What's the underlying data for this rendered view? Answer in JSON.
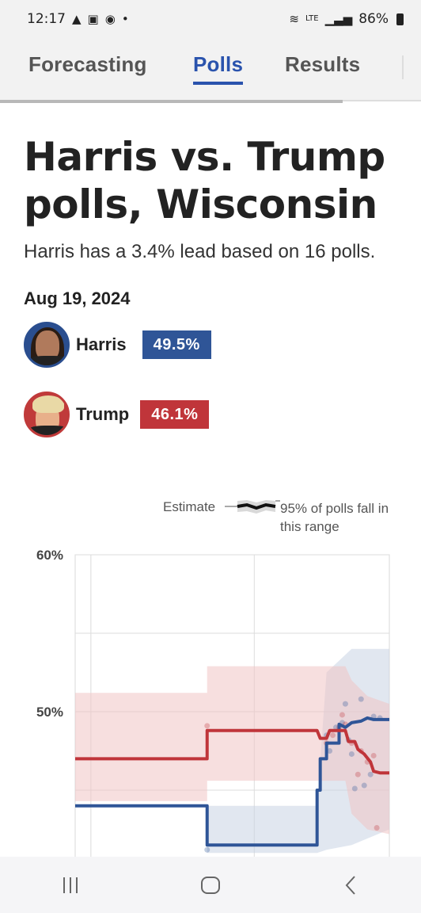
{
  "status_bar": {
    "time": "12:17",
    "battery": "86%",
    "network": "LTE"
  },
  "tabs": [
    {
      "label": "Forecasting",
      "active": false
    },
    {
      "label": "Polls",
      "active": true
    },
    {
      "label": "Results",
      "active": false
    }
  ],
  "page": {
    "title": "Harris vs. Trump polls, Wisconsin",
    "subtitle": "Harris has a 3.4% lead based on 16 polls.",
    "date": "Aug 19, 2024"
  },
  "candidates": [
    {
      "name": "Harris",
      "value": "49.5%",
      "color": "#2f5597"
    },
    {
      "name": "Trump",
      "value": "46.1%",
      "color": "#c0353a"
    }
  ],
  "legend": {
    "estimate": "Estimate",
    "range": "95% of polls fall in this range"
  },
  "chart_data": {
    "type": "line",
    "y_tick_labels": [
      "60%",
      "50%"
    ],
    "ylim": [
      41,
      60
    ],
    "x_range": [
      0,
      100
    ],
    "grid": true,
    "series": [
      {
        "name": "Harris",
        "color": "#2f5597",
        "band_color": "#c9d3e3",
        "points": [
          [
            0,
            44.0
          ],
          [
            42,
            44.0
          ],
          [
            42,
            41.5
          ],
          [
            77,
            41.5
          ],
          [
            77,
            45.0
          ],
          [
            78,
            45.0
          ],
          [
            78,
            47.0
          ],
          [
            80,
            47.0
          ],
          [
            80,
            48.0
          ],
          [
            84,
            48.0
          ],
          [
            84,
            49.2
          ],
          [
            86,
            49.0
          ],
          [
            88,
            49.3
          ],
          [
            91,
            49.4
          ],
          [
            93,
            49.6
          ],
          [
            95,
            49.5
          ],
          [
            100,
            49.5
          ]
        ],
        "band": [
          [
            0,
            41.0,
            41.0
          ],
          [
            42,
            41.0,
            41.0
          ],
          [
            42,
            41.0,
            44.0
          ],
          [
            77,
            41.0,
            44.0
          ],
          [
            80,
            41.2,
            52.5
          ],
          [
            88,
            41.5,
            54.0
          ],
          [
            100,
            42.5,
            54.0
          ]
        ],
        "polls": [
          [
            42,
            41.2
          ],
          [
            80,
            48.5
          ],
          [
            81,
            47.5
          ],
          [
            83,
            49.0
          ],
          [
            85,
            49.3
          ],
          [
            86,
            50.5
          ],
          [
            87,
            48.2
          ],
          [
            88,
            47.3
          ],
          [
            89,
            45.1
          ],
          [
            91,
            50.8
          ],
          [
            92,
            45.3
          ],
          [
            94,
            46.0
          ],
          [
            95,
            49.7
          ],
          [
            97,
            49.6
          ]
        ]
      },
      {
        "name": "Trump",
        "color": "#c0353a",
        "band_color": "#f0c5c5",
        "points": [
          [
            0,
            47.0
          ],
          [
            42,
            47.0
          ],
          [
            42,
            48.8
          ],
          [
            77,
            48.8
          ],
          [
            78,
            48.3
          ],
          [
            80,
            48.3
          ],
          [
            81,
            48.8
          ],
          [
            86,
            48.8
          ],
          [
            87,
            48.1
          ],
          [
            89,
            48.1
          ],
          [
            90,
            47.6
          ],
          [
            92,
            47.3
          ],
          [
            94,
            46.8
          ],
          [
            95,
            46.2
          ],
          [
            97,
            46.1
          ],
          [
            100,
            46.1
          ]
        ],
        "band": [
          [
            0,
            44.3,
            51.2
          ],
          [
            42,
            44.3,
            51.2
          ],
          [
            42,
            45.6,
            52.9
          ],
          [
            86,
            45.6,
            52.9
          ],
          [
            88,
            43.5,
            52.0
          ],
          [
            93,
            42.5,
            51.0
          ],
          [
            100,
            42.2,
            50.5
          ]
        ],
        "polls": [
          [
            42,
            49.1
          ],
          [
            80,
            48.0
          ],
          [
            82,
            48.5
          ],
          [
            84,
            49.0
          ],
          [
            85,
            49.8
          ],
          [
            86,
            49.2
          ],
          [
            88,
            48.0
          ],
          [
            90,
            46.0
          ],
          [
            91,
            47.5
          ],
          [
            93,
            46.8
          ],
          [
            95,
            47.2
          ],
          [
            96,
            42.6
          ]
        ]
      }
    ]
  },
  "nav": {
    "recent": "recent-apps",
    "home": "home",
    "back": "back"
  }
}
